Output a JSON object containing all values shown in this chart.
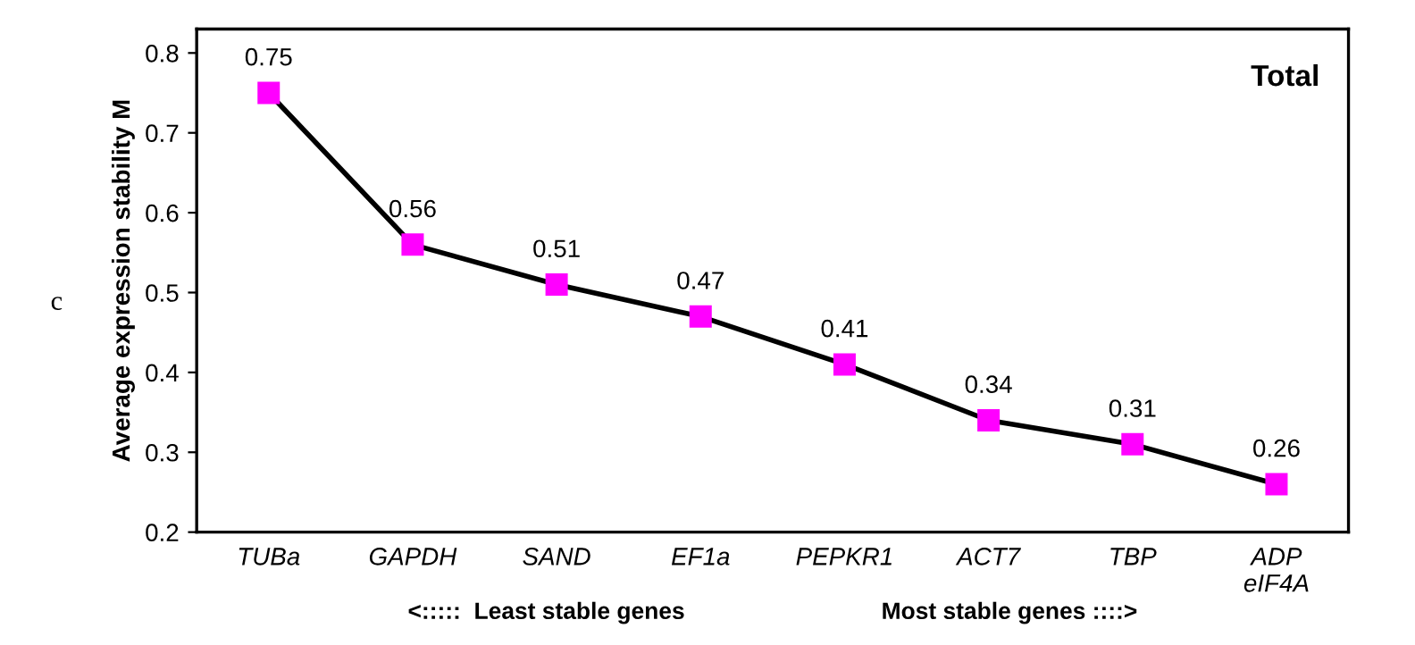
{
  "chart_data": {
    "type": "line",
    "ylabel": "Average expression stability M",
    "xlabel": "<:::::  Least stable genes                              Most stable genes ::::>",
    "categories": [
      "TUBa",
      "GAPDH",
      "SAND",
      "EF1a",
      "PEPKR1",
      "ACT7",
      "TBP",
      "ADP\neIF4A"
    ],
    "series": [
      {
        "color": "#ff00ff",
        "values": [
          0.75,
          0.56,
          0.51,
          0.47,
          0.41,
          0.34,
          0.31,
          0.26
        ]
      }
    ],
    "ylim": [
      0.2,
      0.83
    ],
    "yticks": [
      0.2,
      0.3,
      0.4,
      0.5,
      0.6,
      0.7,
      0.8
    ],
    "grid": false,
    "marker": "square",
    "line_style": "solid",
    "data_labels": true,
    "annotations": [
      "Total",
      "c"
    ]
  }
}
